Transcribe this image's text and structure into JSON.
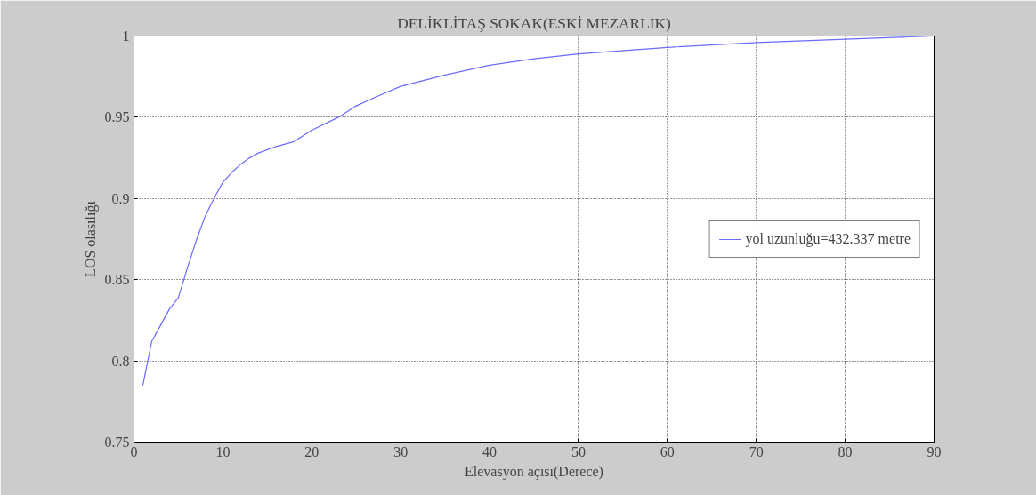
{
  "chart_data": {
    "type": "line",
    "title": "DELİKLİTAŞ SOKAK(ESKİ MEZARLIK)",
    "xlabel": "Elevasyon açısı(Derece)",
    "ylabel": "LOS olasılığı",
    "x": [
      1,
      2,
      3,
      4,
      5,
      6,
      7,
      8,
      9,
      10,
      11,
      12,
      13,
      14,
      16,
      18,
      20,
      23,
      25,
      27,
      30,
      35,
      40,
      45,
      50,
      60,
      70,
      80,
      90
    ],
    "series": [
      {
        "name": "yol uzunluğu=432.337 metre",
        "color": "#6a6aff",
        "values": [
          0.785,
          0.812,
          0.822,
          0.832,
          0.839,
          0.857,
          0.874,
          0.889,
          0.9,
          0.91,
          0.916,
          0.921,
          0.925,
          0.928,
          0.932,
          0.935,
          0.942,
          0.95,
          0.957,
          0.962,
          0.969,
          0.976,
          0.982,
          0.986,
          0.989,
          0.993,
          0.996,
          0.998,
          1.0
        ]
      }
    ],
    "xlim": [
      0,
      90
    ],
    "ylim": [
      0.75,
      1
    ],
    "xticks": [
      0,
      10,
      20,
      30,
      40,
      50,
      60,
      70,
      80,
      90
    ],
    "yticks": [
      0.75,
      0.8,
      0.85,
      0.9,
      0.95,
      1
    ],
    "grid": true,
    "legend": "right",
    "marker": "none",
    "line_style": "solid"
  }
}
